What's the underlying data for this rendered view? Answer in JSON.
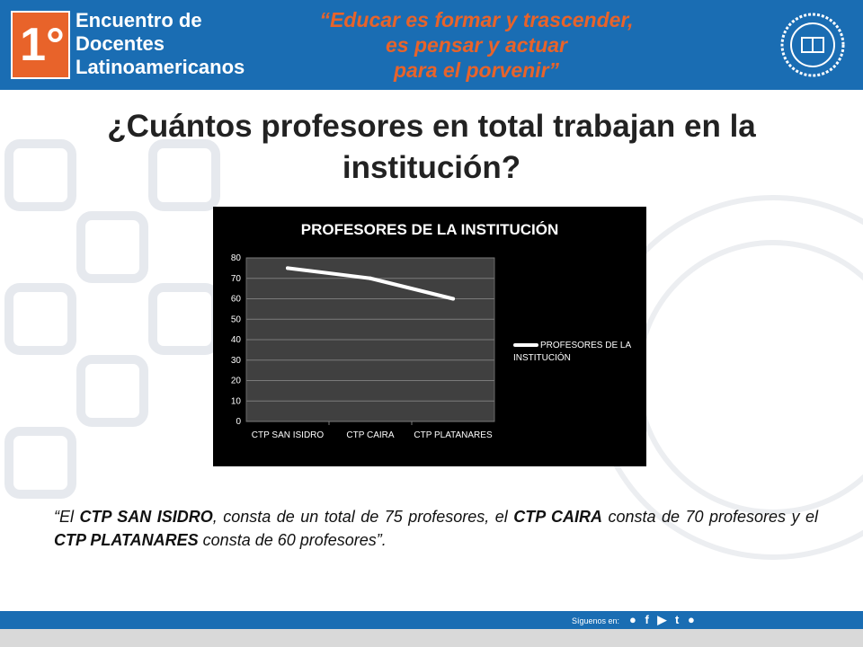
{
  "header": {
    "logo_number": "1°",
    "brand_lines": [
      "Encuentro de",
      "Docentes",
      "Latinoamericanos"
    ],
    "motto_lines": [
      "“Educar es formar y trascender,",
      "es pensar y actuar",
      "para el porvenir”"
    ],
    "seal_icon": "university-seal-icon"
  },
  "title": "¿Cuántos profesores en total trabajan en la institución?",
  "chart_data": {
    "type": "line",
    "title": "PROFESORES DE LA INSTITUCIÓN",
    "categories": [
      "CTP SAN ISIDRO",
      "CTP CAIRA",
      "CTP PLATANARES"
    ],
    "series": [
      {
        "name": "PROFESORES DE LA INSTITUCIÓN",
        "values": [
          75,
          70,
          60
        ],
        "color": "#ffffff"
      }
    ],
    "ylim": [
      0,
      80
    ],
    "yticks": [
      0,
      10,
      20,
      30,
      40,
      50,
      60,
      70,
      80
    ],
    "grid": true,
    "legend": "right",
    "plot_bg": "#404040"
  },
  "description": {
    "open_quote": "“El ",
    "school1": "CTP SAN ISIDRO",
    "text1": ", consta de un total de 75 profesores, el ",
    "school2": "CTP CAIRA",
    "text2": " consta de 70 profesores y el ",
    "school3": "CTP PLATANARES",
    "text3": " consta de 60 profesores”."
  },
  "footer": {
    "follow_label": "Síguenos en:",
    "social_icons": [
      "twitter-icon",
      "facebook-icon",
      "youtube-icon",
      "tumblr-icon",
      "blogger-icon"
    ],
    "social_glyphs": "● f ▶ t ●"
  },
  "colors": {
    "brand_blue": "#1a6db3",
    "accent_orange": "#e8632a"
  }
}
